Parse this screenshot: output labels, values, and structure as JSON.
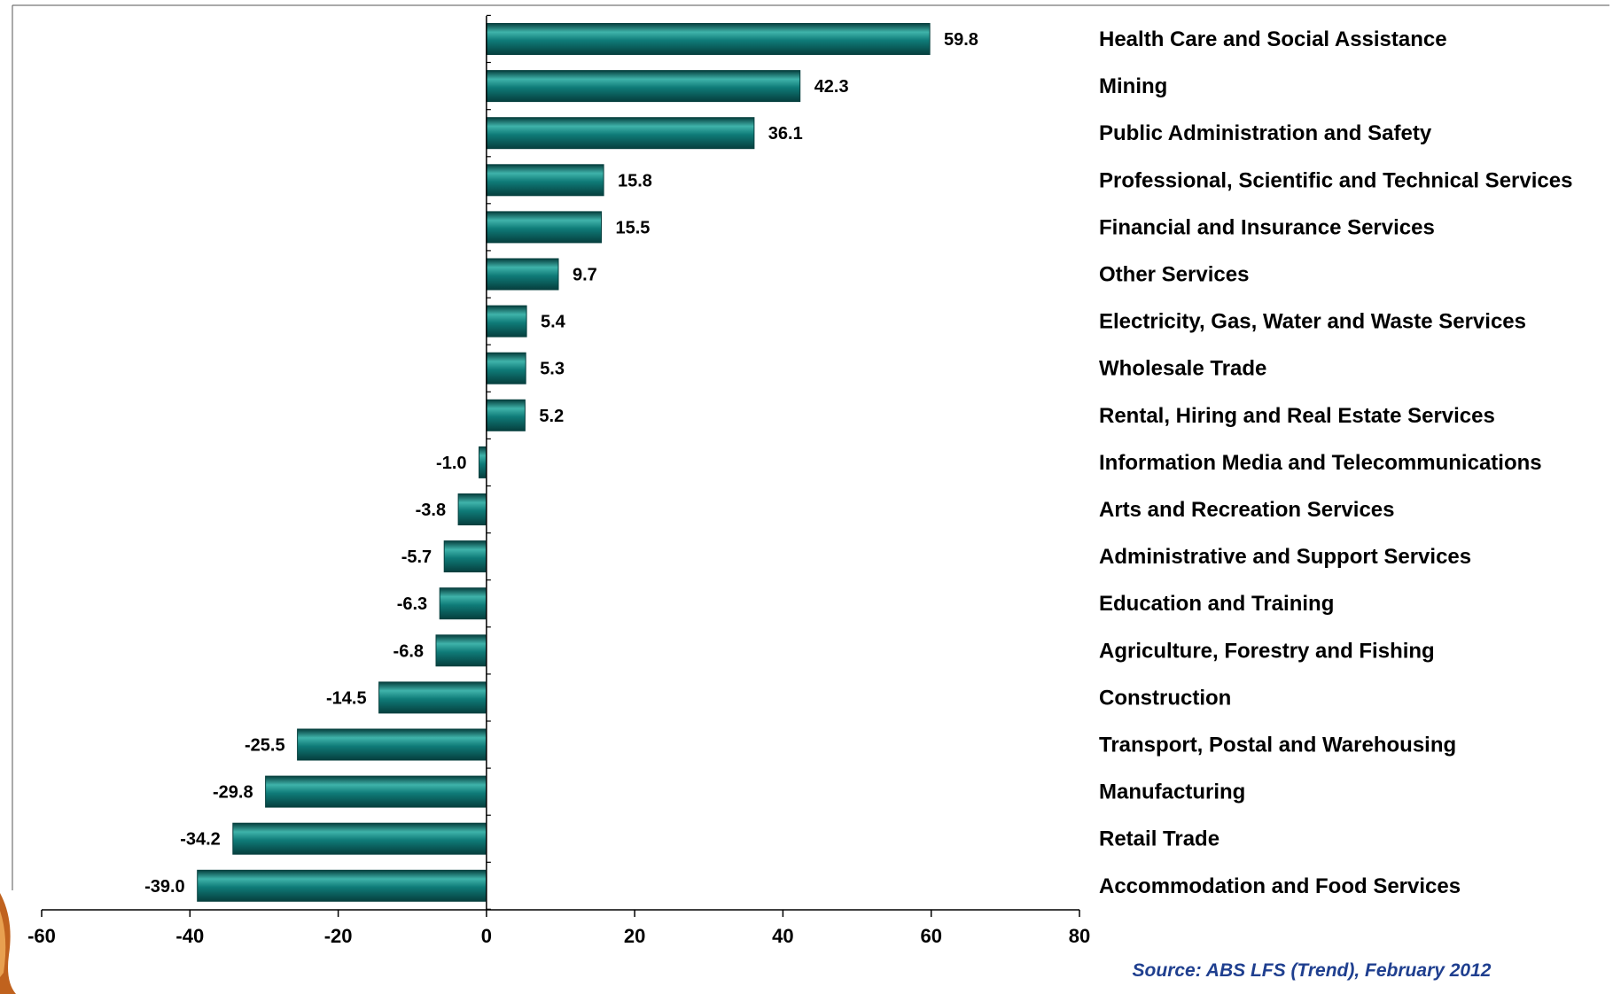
{
  "chart_data": {
    "type": "bar",
    "orientation": "horizontal",
    "title": "",
    "xlabel": "",
    "ylabel": "",
    "categories": [
      "Health Care and Social Assistance",
      "Mining",
      "Public Administration and Safety",
      "Professional, Scientific and Technical Services",
      "Financial and Insurance Services",
      "Other Services",
      "Electricity, Gas, Water and Waste Services",
      "Wholesale Trade",
      "Rental, Hiring and Real Estate Services",
      "Information Media and Telecommunications",
      "Arts and Recreation Services",
      "Administrative and Support  Services",
      "Education and Training",
      "Agriculture, Forestry and Fishing",
      "Construction",
      "Transport, Postal and Warehousing",
      "Manufacturing",
      "Retail Trade",
      "Accommodation and Food  Services"
    ],
    "values": [
      59.8,
      42.3,
      36.1,
      15.8,
      15.5,
      9.7,
      5.4,
      5.3,
      5.2,
      -1.0,
      -3.8,
      -5.7,
      -6.3,
      -6.8,
      -14.5,
      -25.5,
      -29.8,
      -34.2,
      -39.0
    ],
    "value_labels": [
      "59.8",
      "42.3",
      "36.1",
      "15.8",
      "15.5",
      "9.7",
      "5.4",
      "5.3",
      "5.2",
      "-1.0",
      "-3.8",
      "-5.7",
      "-6.3",
      "-6.8",
      "-14.5",
      "-25.5",
      "-29.8",
      "-34.2",
      "-39.0"
    ],
    "xlim": [
      -60,
      80
    ],
    "xticks": [
      -60,
      -40,
      -20,
      0,
      20,
      40,
      60,
      80
    ],
    "xtick_labels": [
      "-60",
      "-40",
      "-20",
      "0",
      "20",
      "40",
      "60",
      "80"
    ],
    "grid": false,
    "legend": "none",
    "bar_color": "#0f7b78",
    "bar_highlight_color": "#3fb3aa",
    "bar_shadow_color": "#063f3e"
  },
  "source": "Source: ABS LFS (Trend), February 2012",
  "colors": {
    "source_text": "#1f3f8f",
    "title_text": "#1f2f8f",
    "axis": "#000000"
  }
}
